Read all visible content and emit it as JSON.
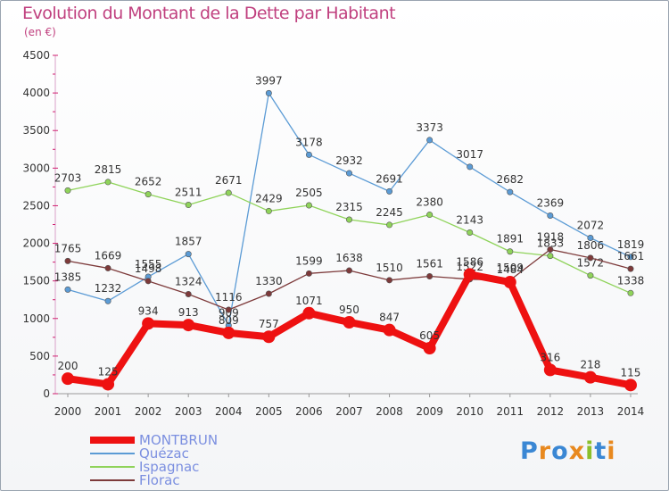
{
  "title": "Evolution du Montant de la Dette par Habitant",
  "subtitle": "(en €)",
  "logo": {
    "text": "Proxiti",
    "letter_colors": [
      "#3a87d4",
      "#e8891f",
      "#3a87d4",
      "#e8891f",
      "#8bbf2b",
      "#3a87d4",
      "#e8891f"
    ]
  },
  "chart_data": {
    "type": "line",
    "x": [
      "2000",
      "2001",
      "2002",
      "2003",
      "2004",
      "2005",
      "2006",
      "2007",
      "2008",
      "2009",
      "2010",
      "2011",
      "2012",
      "2013",
      "2014"
    ],
    "ylim": [
      0,
      4500
    ],
    "yticks": [
      "0",
      "500",
      "1000",
      "1500",
      "2000",
      "2500",
      "3000",
      "3500",
      "4000",
      "4500"
    ],
    "grid": false,
    "legend_position": "bottom-left",
    "series": [
      {
        "name": "Quézac",
        "color": "#5b9bd5",
        "values": [
          1385,
          1232,
          1555,
          1857,
          909,
          3997,
          3178,
          2932,
          2691,
          3373,
          3017,
          2682,
          2369,
          2072,
          1819
        ],
        "labels": [
          "1385",
          "1232",
          "1555",
          "1857",
          "909",
          "3997",
          "3178",
          "2932",
          "2691",
          "3373",
          "3017",
          "2682",
          "2369",
          "2072",
          "1819"
        ]
      },
      {
        "name": "Ispagnac",
        "color": "#8fd35a",
        "values": [
          2703,
          2815,
          2652,
          2511,
          2671,
          2429,
          2505,
          2315,
          2245,
          2380,
          2143,
          1891,
          1833,
          1572,
          1338
        ],
        "labels": [
          "2703",
          "2815",
          "2652",
          "2511",
          "2671",
          "2429",
          "2505",
          "2315",
          "2245",
          "2380",
          "2143",
          "1891",
          "1833",
          "1572",
          "1338"
        ]
      },
      {
        "name": "Florac",
        "color": "#7d3a3a",
        "values": [
          1765,
          1669,
          1498,
          1324,
          1116,
          1330,
          1599,
          1638,
          1510,
          1561,
          1522,
          1509,
          1918,
          1806,
          1661
        ],
        "labels": [
          "1765",
          "1669",
          "1498",
          "1324",
          "1116",
          "1330",
          "1599",
          "1638",
          "1510",
          "1561",
          "1522",
          "1509",
          "1918",
          "1806",
          "1661"
        ]
      },
      {
        "name": "MONTBRUN",
        "color": "#ee1111",
        "values": [
          200,
          125,
          934,
          913,
          809,
          757,
          1071,
          950,
          847,
          605,
          1586,
          1484,
          316,
          218,
          115
        ],
        "labels": [
          "200",
          "125",
          "934",
          "913",
          "809",
          "757",
          "1071",
          "950",
          "847",
          "605",
          "1586",
          "1484",
          "316",
          "218",
          "115"
        ]
      }
    ],
    "legend_order": [
      "MONTBRUN",
      "Quézac",
      "Ispagnac",
      "Florac"
    ]
  }
}
